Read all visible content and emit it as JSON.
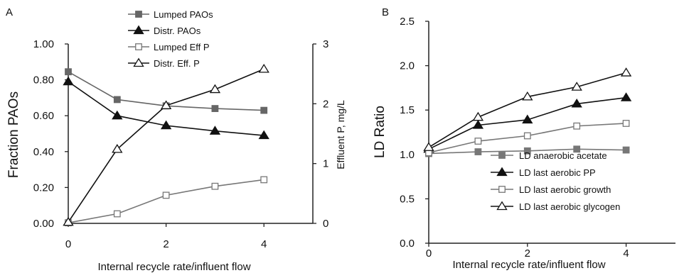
{
  "chart_data": [
    {
      "panel_label": "A",
      "type": "line",
      "xlabel": "Internal recycle rate/influent flow",
      "ylabel_left": "Fraction PAOs",
      "ylabel_right": "Effluent P, mg/L",
      "xlim": [
        0,
        5
      ],
      "ylim_left": [
        0,
        1
      ],
      "ylim_right": [
        0,
        3
      ],
      "x_ticks": [
        "0",
        "2",
        "4"
      ],
      "y_ticks_left": [
        "0.00",
        "0.20",
        "0.40",
        "0.60",
        "0.80",
        "1.00"
      ],
      "y_ticks_right": [
        "0",
        "1",
        "2",
        "3"
      ],
      "legend_position": "top-center",
      "series": [
        {
          "name": "Lumped PAOs",
          "axis": "left",
          "marker": "square-filled",
          "color": "#666666",
          "x": [
            0,
            1,
            2,
            3,
            4
          ],
          "y": [
            0.845,
            0.69,
            0.655,
            0.64,
            0.63
          ]
        },
        {
          "name": "Distr. PAOs",
          "axis": "left",
          "marker": "triangle-filled",
          "color": "#111111",
          "x": [
            0,
            1,
            2,
            3,
            4
          ],
          "y": [
            0.79,
            0.6,
            0.545,
            0.515,
            0.49
          ]
        },
        {
          "name": "Lumped Eff P",
          "axis": "right",
          "marker": "square-open",
          "color": "#777777",
          "x": [
            0,
            1,
            2,
            3,
            4
          ],
          "y": [
            0.01,
            0.16,
            0.47,
            0.62,
            0.73
          ]
        },
        {
          "name": "Distr. Eff. P",
          "axis": "right",
          "marker": "triangle-open",
          "color": "#111111",
          "x": [
            0,
            1,
            2,
            3,
            4
          ],
          "y": [
            0.02,
            1.24,
            1.97,
            2.24,
            2.58
          ]
        }
      ]
    },
    {
      "panel_label": "B",
      "type": "line",
      "xlabel": "Internal recycle rate/influent flow",
      "ylabel": "LD Ratio",
      "xlim": [
        0,
        5
      ],
      "ylim": [
        0,
        2.5
      ],
      "x_ticks": [
        "0",
        "2",
        "4"
      ],
      "y_ticks": [
        "0.0",
        "0.5",
        "1.0",
        "1.5",
        "2.0",
        "2.5"
      ],
      "legend_position": "bottom-right",
      "series": [
        {
          "name": "LD anaerobic acetate",
          "marker": "square-filled",
          "color": "#777777",
          "x": [
            0,
            1,
            2,
            3,
            4
          ],
          "y": [
            1.01,
            1.03,
            1.04,
            1.06,
            1.05
          ]
        },
        {
          "name": "LD last aerobic PP",
          "marker": "triangle-filled",
          "color": "#111111",
          "x": [
            0,
            1,
            2,
            3,
            4
          ],
          "y": [
            1.06,
            1.33,
            1.39,
            1.57,
            1.64
          ]
        },
        {
          "name": "LD last aerobic growth",
          "marker": "square-open",
          "color": "#777777",
          "x": [
            0,
            1,
            2,
            3,
            4
          ],
          "y": [
            1.02,
            1.15,
            1.21,
            1.32,
            1.35
          ]
        },
        {
          "name": "LD last aerobic glycogen",
          "marker": "triangle-open",
          "color": "#111111",
          "x": [
            0,
            1,
            2,
            3,
            4
          ],
          "y": [
            1.08,
            1.42,
            1.65,
            1.76,
            1.92
          ]
        }
      ]
    }
  ]
}
